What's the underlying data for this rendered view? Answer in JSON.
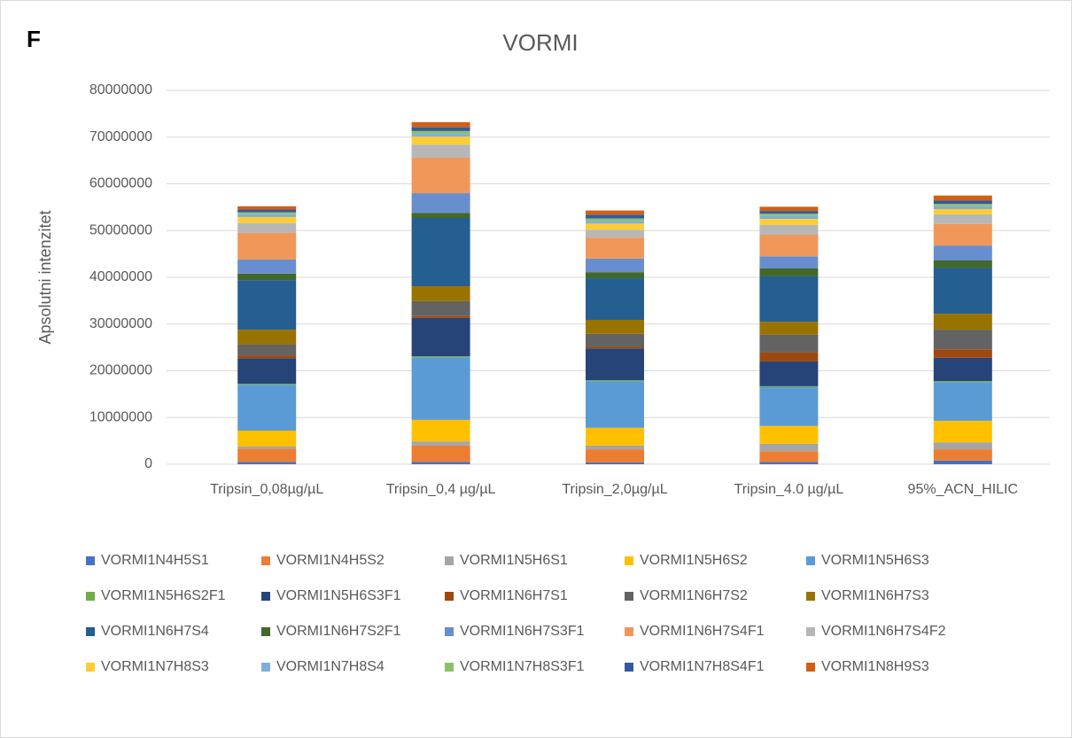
{
  "chart_data": {
    "type": "stacked_bar",
    "panel_label": "F",
    "title": "VORMI",
    "y_label": "Apsolutni intenzitet",
    "categories": [
      "Tripsin_0,08µg/µL",
      "Tripsin_0,4 µg/µL",
      "Tripsin_2,0µg/µL",
      "Tripsin_4.0 µg/µL",
      "95%_ACN_HILIC"
    ],
    "ylim": [
      0,
      80000000
    ],
    "yticks": [
      0,
      10000000,
      20000000,
      30000000,
      40000000,
      50000000,
      60000000,
      70000000,
      80000000
    ],
    "grid": true,
    "legend": "bottom",
    "series": [
      {
        "name": "VORMI1N4H5S1",
        "color": "#4472c4",
        "values": [
          500000,
          500000,
          400000,
          500000,
          800000
        ]
      },
      {
        "name": "VORMI1N4H5S2",
        "color": "#ed7d31",
        "values": [
          2800000,
          3500000,
          2800000,
          2300000,
          2400000
        ]
      },
      {
        "name": "VORMI1N5H6S1",
        "color": "#a5a5a5",
        "values": [
          500000,
          900000,
          800000,
          1600000,
          1500000
        ]
      },
      {
        "name": "VORMI1N5H6S2",
        "color": "#ffc000",
        "values": [
          3400000,
          4600000,
          3800000,
          3800000,
          4600000
        ]
      },
      {
        "name": "VORMI1N5H6S3",
        "color": "#5b9bd5",
        "values": [
          9800000,
          13400000,
          10000000,
          8300000,
          8300000
        ]
      },
      {
        "name": "VORMI1N5H6S2F1",
        "color": "#70ad47",
        "values": [
          200000,
          200000,
          200000,
          200000,
          200000
        ]
      },
      {
        "name": "VORMI1N5H6S3F1",
        "color": "#264478",
        "values": [
          5500000,
          8200000,
          6800000,
          5300000,
          5000000
        ]
      },
      {
        "name": "VORMI1N6H7S1",
        "color": "#9e480e",
        "values": [
          600000,
          400000,
          400000,
          1900000,
          1800000
        ]
      },
      {
        "name": "VORMI1N6H7S2",
        "color": "#636363",
        "values": [
          2300000,
          3200000,
          2700000,
          3800000,
          4200000
        ]
      },
      {
        "name": "VORMI1N6H7S3",
        "color": "#997300",
        "values": [
          3200000,
          3200000,
          3000000,
          2800000,
          3400000
        ]
      },
      {
        "name": "VORMI1N6H7S4",
        "color": "#255e91",
        "values": [
          10600000,
          14600000,
          8900000,
          9700000,
          9800000
        ]
      },
      {
        "name": "VORMI1N6H7S2F1",
        "color": "#43682b",
        "values": [
          1400000,
          1100000,
          1300000,
          1700000,
          1600000
        ]
      },
      {
        "name": "VORMI1N6H7S3F1",
        "color": "#698ed0",
        "values": [
          3000000,
          4200000,
          2900000,
          2600000,
          3200000
        ]
      },
      {
        "name": "VORMI1N6H7S4F1",
        "color": "#f1975a",
        "values": [
          5700000,
          7600000,
          4500000,
          4600000,
          4600000
        ]
      },
      {
        "name": "VORMI1N6H7S4F2",
        "color": "#b7b7b7",
        "values": [
          2100000,
          2800000,
          1700000,
          2100000,
          2100000
        ]
      },
      {
        "name": "VORMI1N7H8S3",
        "color": "#ffcd33",
        "values": [
          1300000,
          1700000,
          1300000,
          1300000,
          1100000
        ]
      },
      {
        "name": "VORMI1N7H8S4",
        "color": "#7cafdd",
        "values": [
          600000,
          600000,
          600000,
          600000,
          600000
        ]
      },
      {
        "name": "VORMI1N7H8S3F1",
        "color": "#8cc168",
        "values": [
          400000,
          600000,
          500000,
          500000,
          500000
        ]
      },
      {
        "name": "VORMI1N7H8S4F1",
        "color": "#335aa1",
        "values": [
          600000,
          800000,
          800000,
          600000,
          700000
        ]
      },
      {
        "name": "VORMI1N8H9S3",
        "color": "#d26012",
        "values": [
          700000,
          1100000,
          900000,
          900000,
          1100000
        ]
      }
    ]
  }
}
